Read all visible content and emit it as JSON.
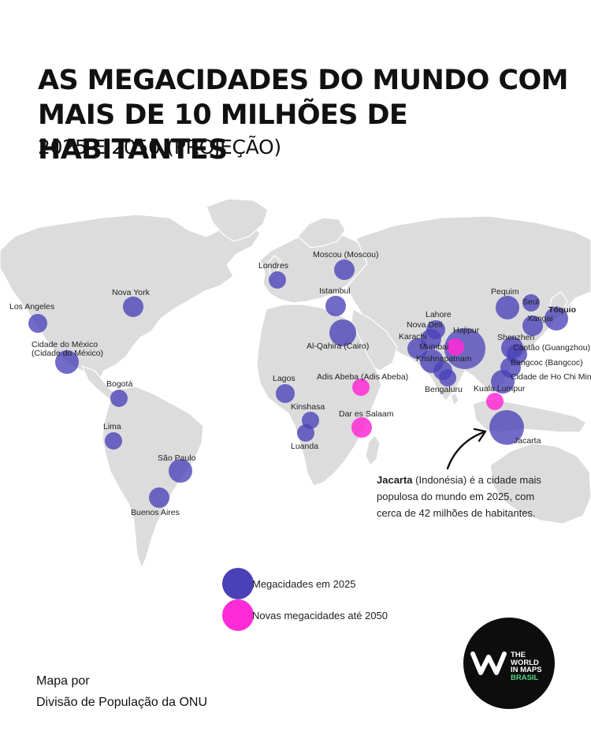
{
  "title_line1": "AS MEGACIDADES DO MUNDO COM",
  "title_line2": "MAIS DE 10 MILHÕES DE HABITANTES",
  "subtitle": "2025 E 2050 (PROJEÇÃO)",
  "colors": {
    "megacity_2025": "#4a41b8",
    "new_2050": "#ff2bd6",
    "land": "#dcdcdc"
  },
  "cities": [
    {
      "name": "Los Angeles",
      "status": "2025"
    },
    {
      "name": "Nova York",
      "status": "2025"
    },
    {
      "name": "Cidade do México (Cidade do México)",
      "line1": "Cidade do México",
      "line2": "(Cidade do México)",
      "status": "2025"
    },
    {
      "name": "Bogotá",
      "status": "2025"
    },
    {
      "name": "Lima",
      "status": "2025"
    },
    {
      "name": "São Paulo",
      "status": "2025"
    },
    {
      "name": "Buenos Aires",
      "status": "2025"
    },
    {
      "name": "Londres",
      "status": "2025"
    },
    {
      "name": "Moscou (Moscou)",
      "status": "2025"
    },
    {
      "name": "Istambul",
      "status": "2025"
    },
    {
      "name": "Al-Qahira (Cairo)",
      "status": "2025"
    },
    {
      "name": "Lagos",
      "status": "2025"
    },
    {
      "name": "Kinshasa",
      "status": "2025"
    },
    {
      "name": "Luanda",
      "status": "2025"
    },
    {
      "name": "Adis Abeba (Adis Abeba)",
      "status": "2050"
    },
    {
      "name": "Dar es Salaam",
      "status": "2050"
    },
    {
      "name": "Lahore",
      "status": "2025"
    },
    {
      "name": "Nova Deli",
      "status": "2025"
    },
    {
      "name": "Karachi",
      "status": "2025"
    },
    {
      "name": "Mumbai",
      "status": "2025"
    },
    {
      "name": "Hajipur",
      "status": "2050"
    },
    {
      "name": "Krishnapatnam",
      "status": "2025"
    },
    {
      "name": "Bengaluru",
      "status": "2025"
    },
    {
      "name": "Kuala Lumpur",
      "status": "2050"
    },
    {
      "name": "Jacarta",
      "status": "2025"
    },
    {
      "name": "Pequim",
      "status": "2025"
    },
    {
      "name": "Seul",
      "status": "2025"
    },
    {
      "name": "Tóquio",
      "status": "2025"
    },
    {
      "name": "Xangai",
      "status": "2025"
    },
    {
      "name": "Shenzhen",
      "status": "2025"
    },
    {
      "name": "Cantão (Guangzhou)",
      "status": "2025"
    },
    {
      "name": "Bangcoc (Bangcoc)",
      "status": "2025"
    },
    {
      "name": "Cidade de Ho Chi Minh",
      "status": "2025"
    }
  ],
  "annotation": {
    "city": "Jacarta",
    "country": " (Indonésia)",
    "rest": " é a cidade mais populosa do mundo em 2025, com cerca de 42 milhões de habitantes."
  },
  "legend": {
    "item_2025": "Megacidades em 2025",
    "item_2050": "Novas megacidades até 2050"
  },
  "source": {
    "line1": "Mapa por",
    "line2": "Divisão de População da ONU"
  },
  "logo": {
    "line1": "THE WORLD",
    "line2": "IN MAPS",
    "line3": "BRASIL"
  }
}
